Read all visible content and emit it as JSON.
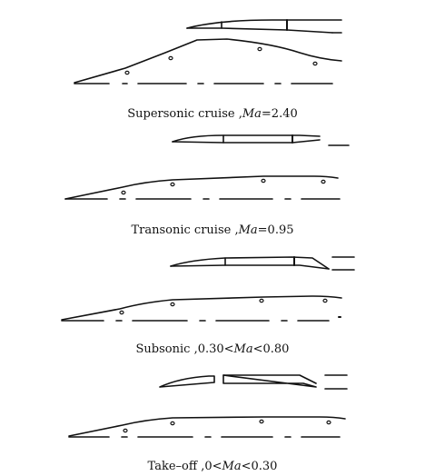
{
  "panels": [
    {
      "caption": {
        "prefix": "Supersonic cruise ,",
        "italic": "Ma",
        "suffix": "=2.40"
      }
    },
    {
      "caption": {
        "prefix": "Transonic cruise ,",
        "italic": "Ma",
        "suffix": "=0.95"
      }
    },
    {
      "caption": {
        "prefix": "Subsonic ,0.30<",
        "italic": "Ma",
        "suffix": "<0.80"
      }
    },
    {
      "caption": {
        "prefix": "Take–off ,0<",
        "italic": "Ma",
        "suffix": "<0.30"
      }
    }
  ],
  "colors": {
    "ink": "#111111",
    "background": "#ffffff"
  }
}
